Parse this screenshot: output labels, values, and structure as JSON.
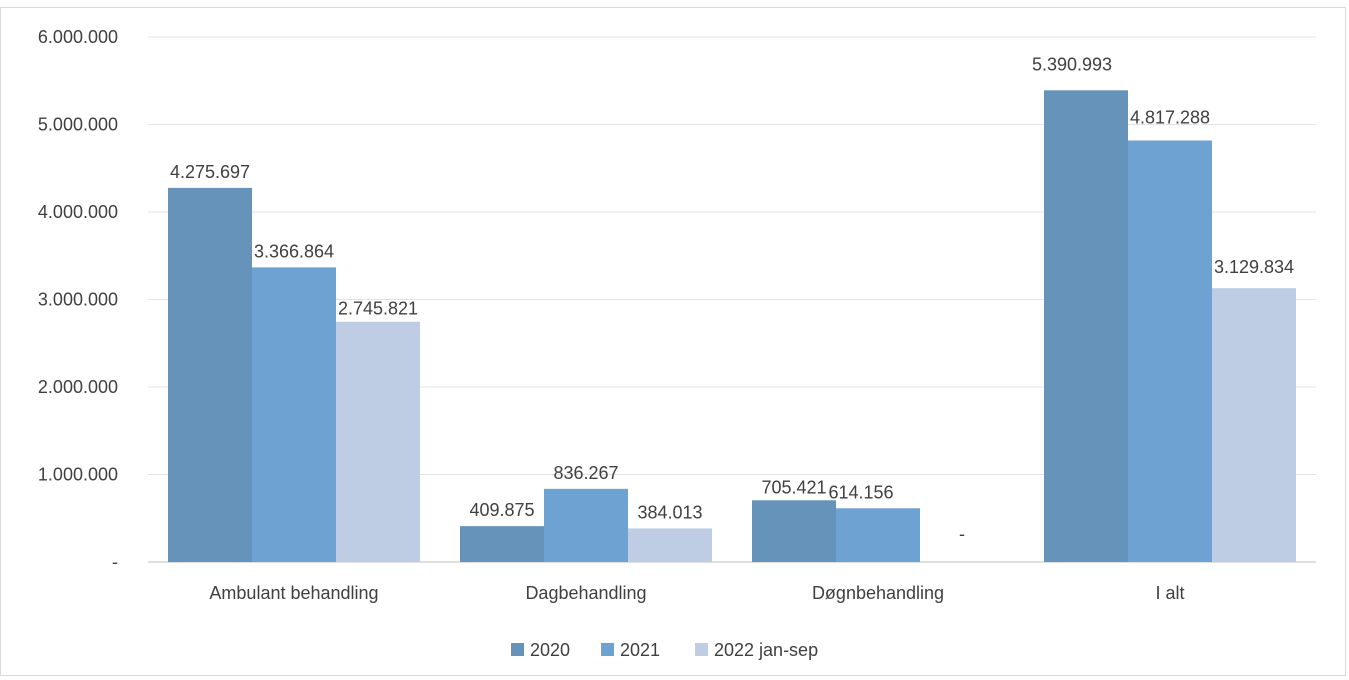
{
  "caption": "",
  "chart_data": {
    "type": "bar",
    "categories": [
      "Ambulant behandling",
      "Dagbehandling",
      "Døgnbehandling",
      "I alt"
    ],
    "series": [
      {
        "name": "2020",
        "color": "#6593ba",
        "values": [
          4275697,
          409875,
          705421,
          5390993
        ],
        "labels": [
          "4.275.697",
          "409.875",
          "705.421",
          "5.390.993"
        ]
      },
      {
        "name": "2021",
        "color": "#6ea2d3",
        "values": [
          3366864,
          836267,
          614156,
          4817288
        ],
        "labels": [
          "3.366.864",
          "836.267",
          "614.156",
          "4.817.288"
        ]
      },
      {
        "name": "2022 jan-sep",
        "color": "#bfcde4",
        "values": [
          2745821,
          384013,
          0,
          3129834
        ],
        "labels": [
          "2.745.821",
          "384.013",
          "-",
          "3.129.834"
        ]
      }
    ],
    "y_ticks": [
      0,
      1000000,
      2000000,
      3000000,
      4000000,
      5000000,
      6000000
    ],
    "y_tick_labels": [
      "-",
      "1.000.000",
      "2.000.000",
      "3.000.000",
      "4.000.000",
      "5.000.000",
      "6.000.000"
    ],
    "ylim": [
      0,
      6000000
    ],
    "grid": true,
    "legend_position": "bottom",
    "xlabel": "",
    "ylabel": ""
  }
}
